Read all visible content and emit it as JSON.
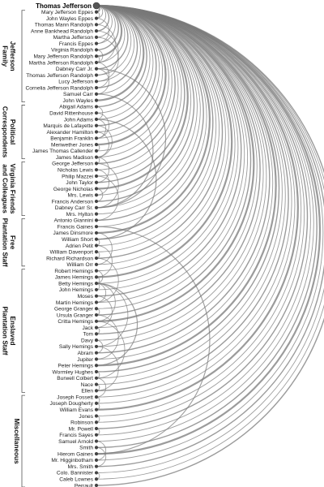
{
  "diagram": {
    "type": "arc-diagram",
    "root": "Thomas Jefferson",
    "colors": {
      "arc": "#7a7a7a",
      "node": "#444444",
      "root_node": "#555555",
      "bracket": "#555555"
    },
    "groups": [
      {
        "label": "Jefferson Family",
        "label_lines": [
          "Jefferson",
          "Family"
        ],
        "members": [
          "Mary Jefferson Eppes",
          "John Wayles Eppes",
          "Thomas Mann Randolph",
          "Anne Bankhead Randolph",
          "Martha Jefferson",
          "Francis Eppes",
          "Virginia Randolph",
          "Mary Jefferson Randolph",
          "Martha Jefferson Randolph",
          "Dabney Carr Jr.",
          "Thomas Jefferson Randolph",
          "Lucy Jefferson",
          "Cornelia Jefferson Randolph",
          "Samuel Carr",
          "John Wayles"
        ]
      },
      {
        "label": "Political Correspondents",
        "label_lines": [
          "Political",
          "Correspondents"
        ],
        "members": [
          "Abigail Adams",
          "David Rittenhouse",
          "John Adams",
          "Marquis de Lafayette",
          "Alexander Hamilton",
          "Benjamin Franklin",
          "Meriwether Jones",
          "James Thomas Callender",
          "James Madison"
        ]
      },
      {
        "label": "Virginia Friends and Colleagues",
        "label_lines": [
          "Virginia Friends",
          "and Colleagues"
        ],
        "members": [
          "George Jefferson",
          "Nicholas Lewis",
          "Philip Mazzei",
          "John Taylor",
          "George Nicholas",
          "Mrs. Lewis",
          "Francis Anderson",
          "Dabney Carr Sr.",
          "Mrs. Hylton"
        ]
      },
      {
        "label": "Free Plantation Staff",
        "label_lines": [
          "Free",
          "Plantation Staff"
        ],
        "members": [
          "Antonio Giannini",
          "Francis Gaines",
          "James Dinsmore",
          "William Short",
          "Adrien Petit",
          "William Davenport",
          "Richard Richardson",
          "William Orr"
        ]
      },
      {
        "label": "Enslaved Plantation Staff",
        "label_lines": [
          "Enslaved",
          "Plantation Staff"
        ],
        "members": [
          "Robert Hemings",
          "James Hemings",
          "Betty Hemings",
          "John Hemings",
          "Moses",
          "Martin Hemings",
          "George Granger",
          "Ursula Granger",
          "Critta Hemings",
          "Jack",
          "Tom",
          "Davy",
          "Sally Hemings",
          "Abram",
          "Jupiter",
          "Peter Hemings",
          "Wormley Hughes",
          "Burwell Colbert",
          "Nace",
          "Ellen"
        ]
      },
      {
        "label": "Miscellaneous",
        "label_lines": [
          "Miscellaneous"
        ],
        "members": [
          "Joseph Fossett",
          "Joseph Dougherty",
          "William Evans",
          "Jones",
          "Robinson",
          "Mr. Powell",
          "Francis Sayes",
          "Samuel Arnold",
          "Smith",
          "Hierom Gaines",
          "Mr. Higginbotham",
          "Mrs. Smith",
          "Colo. Bannister",
          "Caleb Lownes",
          "Perrault"
        ]
      }
    ],
    "extra_links": [
      [
        "Thomas Mann Randolph",
        "Martha Jefferson Randolph"
      ],
      [
        "Mary Jefferson Eppes",
        "John Wayles Eppes"
      ],
      [
        "John Wayles Eppes",
        "Francis Eppes"
      ],
      [
        "Martha Jefferson",
        "Lucy Jefferson"
      ],
      [
        "Thomas Jefferson Randolph",
        "Anne Bankhead Randolph"
      ],
      [
        "Dabney Carr Jr.",
        "Samuel Carr"
      ],
      [
        "Martha Jefferson Randolph",
        "Virginia Randolph"
      ],
      [
        "Martha Jefferson Randolph",
        "Cornelia Jefferson Randolph"
      ],
      [
        "Martha Jefferson Randolph",
        "Mary Jefferson Randolph"
      ],
      [
        "Abigail Adams",
        "John Adams"
      ],
      [
        "John Adams",
        "Benjamin Franklin"
      ],
      [
        "Marquis de Lafayette",
        "James Madison"
      ],
      [
        "Alexander Hamilton",
        "James Madison"
      ],
      [
        "Meriwether Jones",
        "James Thomas Callender"
      ],
      [
        "David Rittenhouse",
        "Benjamin Franklin"
      ],
      [
        "George Jefferson",
        "Dabney Carr Sr."
      ],
      [
        "Nicholas Lewis",
        "Mrs. Lewis"
      ],
      [
        "Philip Mazzei",
        "Antonio Giannini"
      ],
      [
        "John Taylor",
        "James Madison"
      ],
      [
        "George Nicholas",
        "Francis Anderson"
      ],
      [
        "Dabney Carr Sr.",
        "Dabney Carr Jr."
      ],
      [
        "Francis Gaines",
        "Hierom Gaines"
      ],
      [
        "James Dinsmore",
        "William Orr"
      ],
      [
        "William Short",
        "Adrien Petit"
      ],
      [
        "Adrien Petit",
        "James Hemings"
      ],
      [
        "William Davenport",
        "Richard Richardson"
      ],
      [
        "Robert Hemings",
        "Betty Hemings"
      ],
      [
        "James Hemings",
        "Betty Hemings"
      ],
      [
        "Betty Hemings",
        "John Hemings"
      ],
      [
        "Betty Hemings",
        "Martin Hemings"
      ],
      [
        "Betty Hemings",
        "Critta Hemings"
      ],
      [
        "Betty Hemings",
        "Sally Hemings"
      ],
      [
        "Betty Hemings",
        "Peter Hemings"
      ],
      [
        "George Granger",
        "Ursula Granger"
      ],
      [
        "Ursula Granger",
        "Jupiter"
      ],
      [
        "Jack",
        "Tom"
      ],
      [
        "Davy",
        "Abram"
      ],
      [
        "Wormley Hughes",
        "Burwell Colbert"
      ],
      [
        "Burwell Colbert",
        "Joseph Fossett"
      ],
      [
        "Moses",
        "Jack"
      ],
      [
        "Nace",
        "Ellen"
      ],
      [
        "Joseph Fossett",
        "Joseph Dougherty"
      ],
      [
        "Joseph Dougherty",
        "William Evans"
      ],
      [
        "Smith",
        "Mrs. Smith"
      ],
      [
        "Samuel Arnold",
        "Mr. Higginbotham"
      ],
      [
        "Jones",
        "Robinson"
      ],
      [
        "Colo. Bannister",
        "Caleb Lownes"
      ],
      [
        "Mr. Powell",
        "Francis Sayes"
      ],
      [
        "Sally Hemings",
        "Ellen"
      ],
      [
        "Critta Hemings",
        "Burwell Colbert"
      ],
      [
        "James Madison",
        "George Jefferson"
      ],
      [
        "Samuel Carr",
        "Dabney Carr Sr."
      ],
      [
        "William Short",
        "John Adams"
      ],
      [
        "Richard Richardson",
        "Martin Hemings"
      ]
    ]
  }
}
